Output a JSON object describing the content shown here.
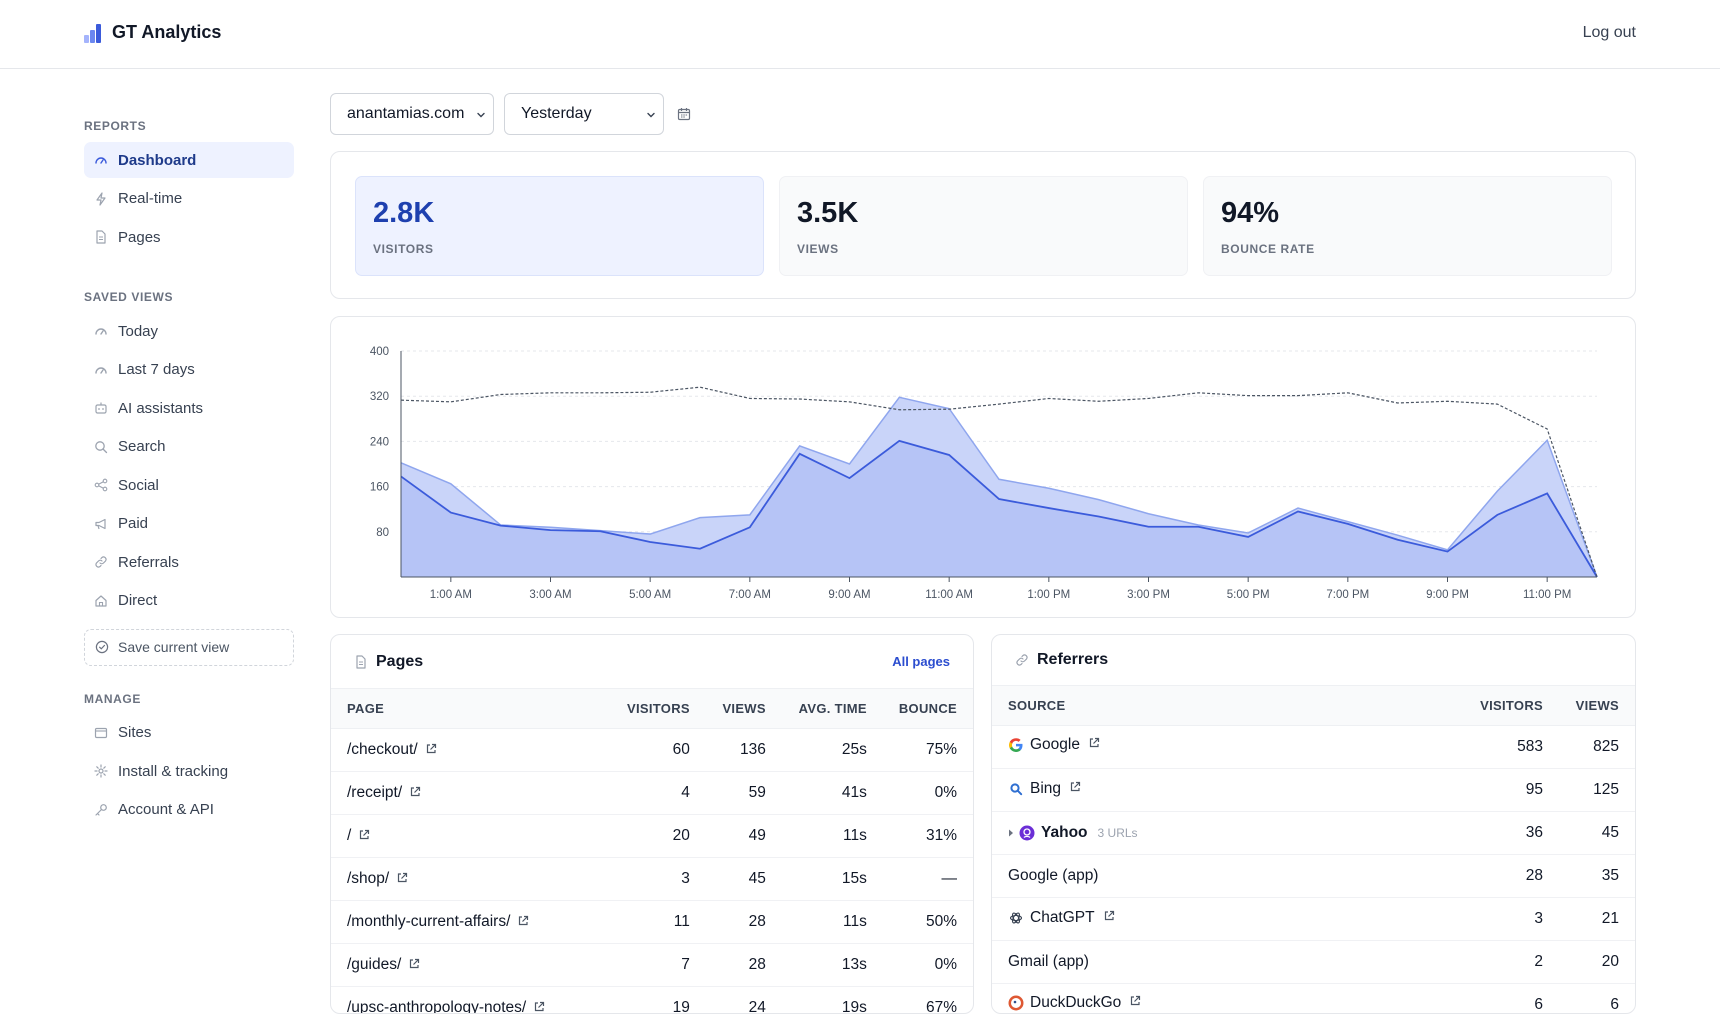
{
  "header": {
    "brand": "GT Analytics",
    "brand_logo_colors": [
      "#a5b4fc",
      "#6b87f0",
      "#3b5bdb"
    ],
    "logout": "Log out"
  },
  "sidebar": {
    "reports_label": "REPORTS",
    "reports": [
      {
        "label": "Dashboard",
        "icon": "gauge-icon",
        "active": true
      },
      {
        "label": "Real-time",
        "icon": "bolt-icon"
      },
      {
        "label": "Pages",
        "icon": "document-icon"
      }
    ],
    "saved_label": "SAVED VIEWS",
    "saved": [
      {
        "label": "Today",
        "icon": "gauge-icon"
      },
      {
        "label": "Last 7 days",
        "icon": "gauge-icon"
      },
      {
        "label": "AI assistants",
        "icon": "robot-icon"
      },
      {
        "label": "Search",
        "icon": "search-icon"
      },
      {
        "label": "Social",
        "icon": "share-icon"
      },
      {
        "label": "Paid",
        "icon": "megaphone-icon"
      },
      {
        "label": "Referrals",
        "icon": "link-icon"
      },
      {
        "label": "Direct",
        "icon": "home-icon"
      }
    ],
    "save_view": "Save current view",
    "manage_label": "MANAGE",
    "manage": [
      {
        "label": "Sites",
        "icon": "window-icon"
      },
      {
        "label": "Install & tracking",
        "icon": "gear-icon"
      },
      {
        "label": "Account & API",
        "icon": "key-icon"
      }
    ]
  },
  "filters": {
    "site": "anantamias.com",
    "range": "Yesterday"
  },
  "stats": [
    {
      "value": "2.8K",
      "label": "VISITORS"
    },
    {
      "value": "3.5K",
      "label": "VIEWS"
    },
    {
      "value": "94%",
      "label": "BOUNCE RATE"
    }
  ],
  "chart_data": {
    "type": "area",
    "ylim": [
      0,
      400
    ],
    "yticks": [
      80,
      160,
      240,
      320,
      400
    ],
    "x_labels": [
      "1:00 AM",
      "3:00 AM",
      "5:00 AM",
      "7:00 AM",
      "9:00 AM",
      "11:00 AM",
      "1:00 PM",
      "3:00 PM",
      "5:00 PM",
      "7:00 PM",
      "9:00 PM",
      "11:00 PM"
    ],
    "x": [
      "12:00 AM",
      "1:00 AM",
      "2:00 AM",
      "3:00 AM",
      "4:00 AM",
      "5:00 AM",
      "6:00 AM",
      "7:00 AM",
      "8:00 AM",
      "9:00 AM",
      "10:00 AM",
      "11:00 AM",
      "12:00 PM",
      "1:00 PM",
      "2:00 PM",
      "3:00 PM",
      "4:00 PM",
      "5:00 PM",
      "6:00 PM",
      "7:00 PM",
      "8:00 PM",
      "9:00 PM",
      "10:00 PM",
      "11:00 PM",
      "12:00 AM"
    ],
    "series": [
      {
        "values": [
          202,
          165,
          92,
          88,
          82,
          76,
          105,
          110,
          232,
          200,
          318,
          298,
          173,
          157,
          137,
          112,
          92,
          78,
          122,
          98,
          74,
          48,
          152,
          242,
          0
        ],
        "color": "#8fa6ee"
      },
      {
        "values": [
          178,
          114,
          91,
          83,
          81,
          62,
          50,
          88,
          218,
          175,
          241,
          216,
          138,
          122,
          107,
          89,
          89,
          71,
          116,
          94,
          66,
          45,
          110,
          148,
          0
        ],
        "color": "#3b5bdb"
      },
      {
        "values": [
          313,
          310,
          323,
          326,
          326,
          327,
          336,
          316,
          315,
          310,
          296,
          297,
          306,
          316,
          311,
          316,
          326,
          321,
          321,
          326,
          308,
          311,
          306,
          262,
          0
        ],
        "color": "#4b5563",
        "style": "dashed"
      }
    ]
  },
  "pages_card": {
    "title": "Pages",
    "link": "All pages",
    "columns": [
      "PAGE",
      "VISITORS",
      "VIEWS",
      "AVG. TIME",
      "BOUNCE"
    ],
    "rows": [
      [
        "/checkout/",
        "60",
        "136",
        "25s",
        "75%"
      ],
      [
        "/receipt/",
        "4",
        "59",
        "41s",
        "0%"
      ],
      [
        "/",
        "20",
        "49",
        "11s",
        "31%"
      ],
      [
        "/shop/",
        "3",
        "45",
        "15s",
        "—"
      ],
      [
        "/monthly-current-affairs/",
        "11",
        "28",
        "11s",
        "50%"
      ],
      [
        "/guides/",
        "7",
        "28",
        "13s",
        "0%"
      ],
      [
        "/upsc-anthropology-notes/",
        "19",
        "24",
        "19s",
        "67%"
      ]
    ]
  },
  "referrers_card": {
    "title": "Referrers",
    "columns": [
      "SOURCE",
      "VISITORS",
      "VIEWS"
    ],
    "rows": [
      {
        "source": "Google",
        "icon": "google-icon",
        "link": true,
        "visitors": "583",
        "views": "825"
      },
      {
        "source": "Bing",
        "icon": "bing-search-icon",
        "link": true,
        "visitors": "95",
        "views": "125"
      },
      {
        "source": "Yahoo",
        "icon": "yahoo-icon",
        "expandable": true,
        "urls": "3 URLs",
        "visitors": "36",
        "views": "45"
      },
      {
        "source": "Google (app)",
        "visitors": "28",
        "views": "35"
      },
      {
        "source": "ChatGPT",
        "icon": "chatgpt-icon",
        "link": true,
        "visitors": "3",
        "views": "21"
      },
      {
        "source": "Gmail (app)",
        "visitors": "2",
        "views": "20"
      },
      {
        "source": "DuckDuckGo",
        "icon": "duckduckgo-icon",
        "link": true,
        "visitors": "6",
        "views": "6"
      }
    ]
  }
}
